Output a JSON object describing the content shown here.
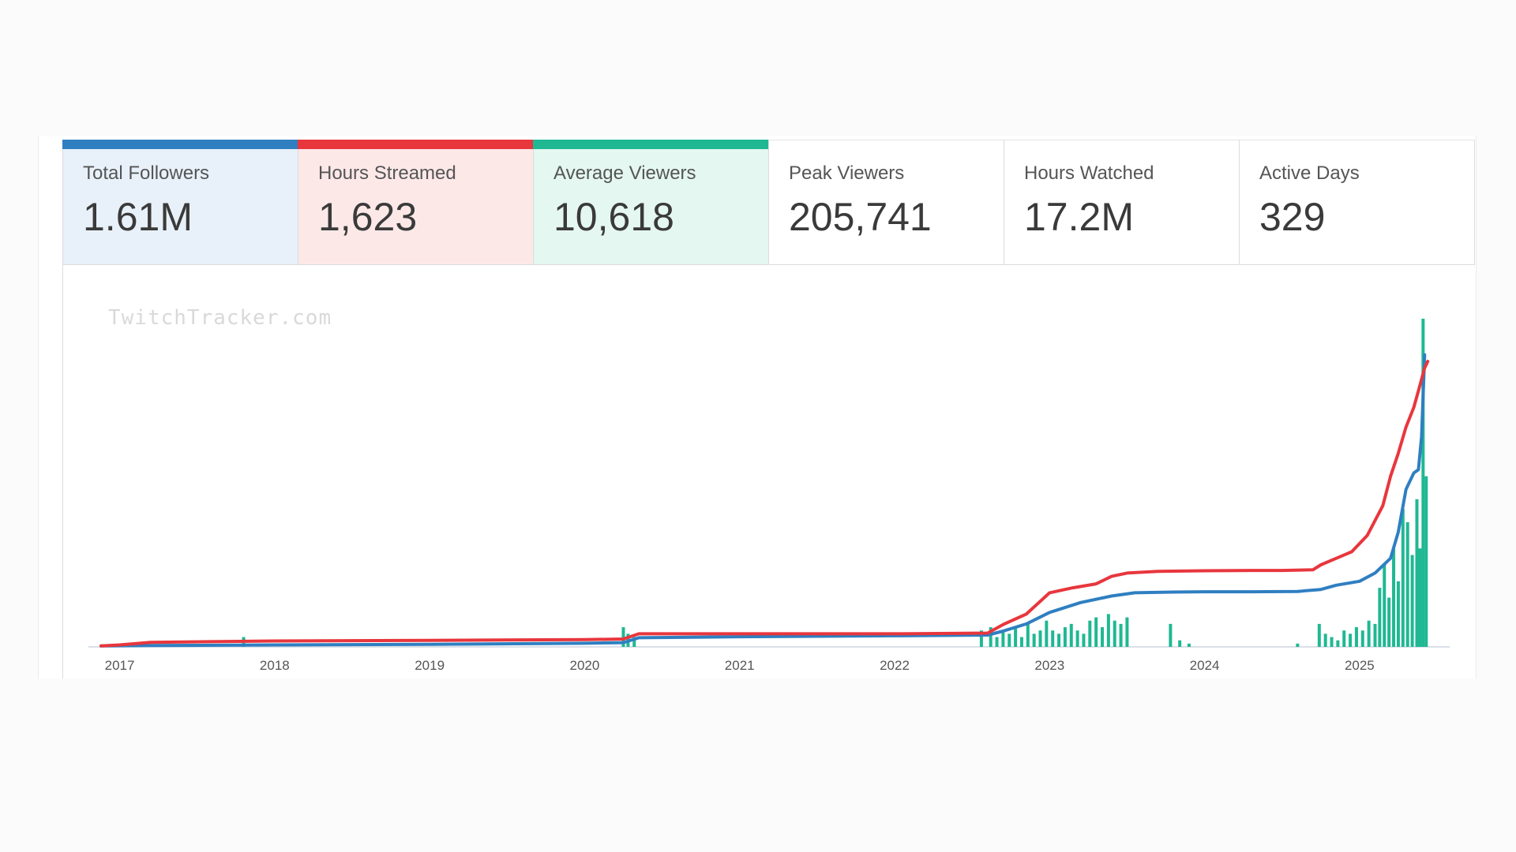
{
  "stats": [
    {
      "label": "Total Followers",
      "value": "1.61M",
      "accent": "#2f7fc1",
      "tint": "#e8f1f9"
    },
    {
      "label": "Hours Streamed",
      "value": "1,623",
      "accent": "#e8363d",
      "tint": "#fde8e8"
    },
    {
      "label": "Average Viewers",
      "value": "10,618",
      "accent": "#1fb893",
      "tint": "#e4f7f1"
    },
    {
      "label": "Peak Viewers",
      "value": "205,741",
      "accent": "",
      "tint": "#ffffff"
    },
    {
      "label": "Hours Watched",
      "value": "17.2M",
      "accent": "",
      "tint": "#ffffff"
    },
    {
      "label": "Active Days",
      "value": "329",
      "accent": "",
      "tint": "#ffffff"
    }
  ],
  "watermark": "TwitchTracker.com",
  "chart_data": {
    "type": "line",
    "title": "",
    "xlabel": "",
    "ylabel": "",
    "x_ticks": [
      "2017",
      "2018",
      "2019",
      "2020",
      "2021",
      "2022",
      "2023",
      "2024",
      "2025"
    ],
    "xlim": [
      2016.88,
      2025.5
    ],
    "ylim": [
      0,
      1
    ],
    "grid": false,
    "colors": {
      "followers": "#2f7fc1",
      "hours_streamed": "#e8363d",
      "viewers": "#1fb893"
    },
    "series": [
      {
        "key": "followers",
        "type": "line",
        "x": [
          2016.88,
          2017.2,
          2018.0,
          2019.0,
          2020.0,
          2020.25,
          2020.35,
          2021.0,
          2022.0,
          2022.6,
          2022.7,
          2022.85,
          2023.0,
          2023.2,
          2023.4,
          2023.55,
          2023.8,
          2024.0,
          2024.3,
          2024.6,
          2024.75,
          2024.85,
          2025.0,
          2025.1,
          2025.2,
          2025.25,
          2025.3,
          2025.35,
          2025.38,
          2025.4,
          2025.42
        ],
        "y": [
          0.003,
          0.004,
          0.006,
          0.008,
          0.011,
          0.013,
          0.028,
          0.031,
          0.034,
          0.036,
          0.048,
          0.07,
          0.105,
          0.135,
          0.155,
          0.165,
          0.167,
          0.168,
          0.168,
          0.169,
          0.175,
          0.188,
          0.2,
          0.225,
          0.27,
          0.35,
          0.48,
          0.53,
          0.54,
          0.64,
          0.89
        ]
      },
      {
        "key": "hours_streamed",
        "type": "line",
        "x": [
          2016.88,
          2017.0,
          2017.2,
          2018.0,
          2019.0,
          2020.0,
          2020.25,
          2020.35,
          2021.0,
          2022.0,
          2022.6,
          2022.7,
          2022.85,
          2023.0,
          2023.15,
          2023.3,
          2023.4,
          2023.5,
          2023.7,
          2024.0,
          2024.3,
          2024.5,
          2024.7,
          2024.75,
          2024.85,
          2024.95,
          2025.05,
          2025.15,
          2025.2,
          2025.25,
          2025.3,
          2025.35,
          2025.38,
          2025.42,
          2025.44
        ],
        "y": [
          0.003,
          0.006,
          0.014,
          0.018,
          0.02,
          0.022,
          0.024,
          0.04,
          0.04,
          0.04,
          0.042,
          0.068,
          0.1,
          0.165,
          0.18,
          0.192,
          0.215,
          0.225,
          0.23,
          0.232,
          0.233,
          0.233,
          0.235,
          0.25,
          0.27,
          0.29,
          0.34,
          0.43,
          0.52,
          0.59,
          0.67,
          0.73,
          0.78,
          0.85,
          0.87
        ]
      },
      {
        "key": "viewers",
        "type": "bar",
        "x": [
          2017.8,
          2020.25,
          2020.28,
          2020.32,
          2022.56,
          2022.62,
          2022.66,
          2022.7,
          2022.74,
          2022.78,
          2022.82,
          2022.86,
          2022.9,
          2022.94,
          2022.98,
          2023.02,
          2023.06,
          2023.1,
          2023.14,
          2023.18,
          2023.22,
          2023.26,
          2023.3,
          2023.34,
          2023.38,
          2023.42,
          2023.46,
          2023.5,
          2023.78,
          2023.84,
          2023.9,
          2024.6,
          2024.74,
          2024.78,
          2024.82,
          2024.86,
          2024.9,
          2024.94,
          2024.98,
          2025.02,
          2025.06,
          2025.1,
          2025.13,
          2025.16,
          2025.19,
          2025.22,
          2025.25,
          2025.28,
          2025.31,
          2025.34,
          2025.37,
          2025.39,
          2025.41,
          2025.43
        ],
        "y": [
          0.03,
          0.06,
          0.04,
          0.03,
          0.05,
          0.06,
          0.03,
          0.05,
          0.04,
          0.06,
          0.03,
          0.07,
          0.04,
          0.05,
          0.08,
          0.05,
          0.04,
          0.06,
          0.07,
          0.05,
          0.04,
          0.08,
          0.09,
          0.06,
          0.1,
          0.08,
          0.07,
          0.09,
          0.07,
          0.02,
          0.01,
          0.01,
          0.07,
          0.04,
          0.03,
          0.02,
          0.05,
          0.04,
          0.06,
          0.05,
          0.08,
          0.07,
          0.18,
          0.25,
          0.15,
          0.3,
          0.2,
          0.42,
          0.38,
          0.28,
          0.45,
          0.3,
          1.0,
          0.52
        ]
      }
    ]
  }
}
